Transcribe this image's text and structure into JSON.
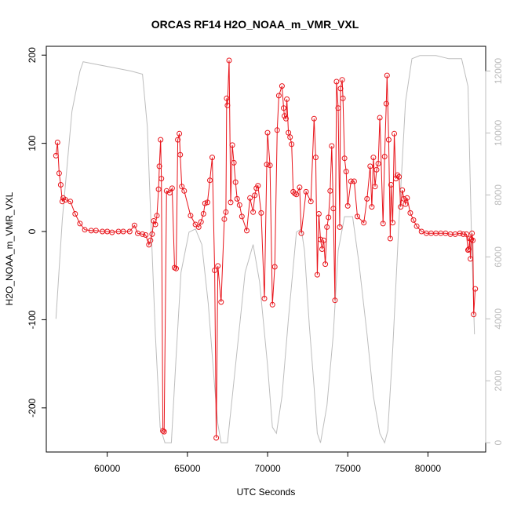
{
  "chart_data": {
    "type": "line",
    "title": "ORCAS RF14 H2O_NOAA_m_VMR_VXL",
    "xlabel": "UTC Seconds",
    "ylabel": "H2O_NOAA_m_VMR_VXL",
    "xlim": [
      56200,
      83600
    ],
    "ylim": [
      -250,
      210
    ],
    "y2lim": [
      -300,
      12800
    ],
    "x_ticks": [
      60000,
      65000,
      70000,
      75000,
      80000
    ],
    "y_ticks": [
      -200,
      -100,
      0,
      100,
      200
    ],
    "y2_ticks": [
      0,
      2000,
      4000,
      6000,
      8000,
      10000,
      12000
    ],
    "grid": false,
    "colors": {
      "primary": "#e8141b",
      "secondary": "#bdbdbd",
      "axis": "#000000"
    },
    "series": [
      {
        "axis": "left",
        "style": "line+points",
        "points": [
          [
            56800,
            86
          ],
          [
            56900,
            101
          ],
          [
            57000,
            66
          ],
          [
            57100,
            53
          ],
          [
            57200,
            34
          ],
          [
            57250,
            38
          ],
          [
            57400,
            36
          ],
          [
            57700,
            34
          ],
          [
            58000,
            20
          ],
          [
            58300,
            9
          ],
          [
            58600,
            2
          ],
          [
            59000,
            1
          ],
          [
            59300,
            1
          ],
          [
            59700,
            0
          ],
          [
            60000,
            0
          ],
          [
            60300,
            -1
          ],
          [
            60700,
            0
          ],
          [
            61000,
            0
          ],
          [
            61400,
            0
          ],
          [
            61700,
            7
          ],
          [
            61900,
            -2
          ],
          [
            62200,
            -3
          ],
          [
            62400,
            -4
          ],
          [
            62600,
            -15
          ],
          [
            62700,
            -10
          ],
          [
            62800,
            -3
          ],
          [
            62900,
            12
          ],
          [
            63000,
            8
          ],
          [
            63100,
            18
          ],
          [
            63200,
            48
          ],
          [
            63250,
            74
          ],
          [
            63330,
            104
          ],
          [
            63380,
            60
          ],
          [
            63470,
            -226
          ],
          [
            63550,
            -227
          ],
          [
            63700,
            46
          ],
          [
            63900,
            44
          ],
          [
            64050,
            49
          ],
          [
            64200,
            -41
          ],
          [
            64300,
            -42
          ],
          [
            64400,
            104
          ],
          [
            64500,
            111
          ],
          [
            64550,
            87
          ],
          [
            64650,
            51
          ],
          [
            64800,
            46
          ],
          [
            65200,
            18
          ],
          [
            65500,
            8
          ],
          [
            65700,
            5
          ],
          [
            65850,
            11
          ],
          [
            66000,
            20
          ],
          [
            66100,
            32
          ],
          [
            66250,
            33
          ],
          [
            66400,
            58
          ],
          [
            66550,
            84
          ],
          [
            66700,
            -44
          ],
          [
            66800,
            -234
          ],
          [
            66900,
            -39
          ],
          [
            67100,
            -80
          ],
          [
            67300,
            14
          ],
          [
            67400,
            22
          ],
          [
            67450,
            151
          ],
          [
            67500,
            143
          ],
          [
            67600,
            194
          ],
          [
            67700,
            33
          ],
          [
            67800,
            98
          ],
          [
            67900,
            78
          ],
          [
            68000,
            56
          ],
          [
            68100,
            37
          ],
          [
            68250,
            30
          ],
          [
            68400,
            17
          ],
          [
            68700,
            1
          ],
          [
            68900,
            38
          ],
          [
            69100,
            22
          ],
          [
            69200,
            41
          ],
          [
            69300,
            49
          ],
          [
            69400,
            52
          ],
          [
            69600,
            21
          ],
          [
            69800,
            -76
          ],
          [
            69950,
            76
          ],
          [
            70000,
            112
          ],
          [
            70150,
            75
          ],
          [
            70300,
            -83
          ],
          [
            70450,
            -40
          ],
          [
            70600,
            115
          ],
          [
            70700,
            154
          ],
          [
            70900,
            165
          ],
          [
            71000,
            140
          ],
          [
            71050,
            131
          ],
          [
            71150,
            128
          ],
          [
            71200,
            150
          ],
          [
            71300,
            112
          ],
          [
            71400,
            107
          ],
          [
            71500,
            99
          ],
          [
            71600,
            45
          ],
          [
            71700,
            43
          ],
          [
            71800,
            42
          ],
          [
            72000,
            50
          ],
          [
            72100,
            -2
          ],
          [
            72400,
            45
          ],
          [
            72700,
            34
          ],
          [
            72900,
            128
          ],
          [
            73000,
            84
          ],
          [
            73100,
            -49
          ],
          [
            73200,
            20
          ],
          [
            73300,
            -9
          ],
          [
            73400,
            -20
          ],
          [
            73500,
            -10
          ],
          [
            73600,
            -37
          ],
          [
            73700,
            5
          ],
          [
            73800,
            16
          ],
          [
            73900,
            46
          ],
          [
            74000,
            97
          ],
          [
            74100,
            26
          ],
          [
            74200,
            -78
          ],
          [
            74300,
            170
          ],
          [
            74400,
            140
          ],
          [
            74500,
            5
          ],
          [
            74550,
            162
          ],
          [
            74650,
            172
          ],
          [
            74700,
            151
          ],
          [
            74800,
            83
          ],
          [
            74900,
            68
          ],
          [
            75000,
            29
          ],
          [
            75200,
            57
          ],
          [
            75400,
            57
          ],
          [
            75600,
            17
          ],
          [
            76000,
            10
          ],
          [
            76200,
            37
          ],
          [
            76400,
            74
          ],
          [
            76500,
            28
          ],
          [
            76600,
            84
          ],
          [
            76700,
            51
          ],
          [
            76800,
            70
          ],
          [
            76900,
            77
          ],
          [
            77000,
            129
          ],
          [
            77200,
            9
          ],
          [
            77300,
            85
          ],
          [
            77400,
            145
          ],
          [
            77450,
            177
          ],
          [
            77550,
            104
          ],
          [
            77650,
            -8
          ],
          [
            77700,
            53
          ],
          [
            77800,
            10
          ],
          [
            77900,
            111
          ],
          [
            78000,
            60
          ],
          [
            78100,
            64
          ],
          [
            78200,
            62
          ],
          [
            78300,
            28
          ],
          [
            78400,
            47
          ],
          [
            78500,
            37
          ],
          [
            78600,
            31
          ],
          [
            78700,
            38
          ],
          [
            78900,
            21
          ],
          [
            79100,
            13
          ],
          [
            79300,
            6
          ],
          [
            79600,
            0
          ],
          [
            79900,
            -2
          ],
          [
            80200,
            -2
          ],
          [
            80500,
            -2
          ],
          [
            80800,
            -2
          ],
          [
            81100,
            -2
          ],
          [
            81400,
            -3
          ],
          [
            81700,
            -3
          ],
          [
            82000,
            -2
          ],
          [
            82200,
            -3
          ],
          [
            82400,
            -3
          ],
          [
            82500,
            -21
          ],
          [
            82550,
            -20
          ],
          [
            82600,
            -8
          ],
          [
            82650,
            -31
          ],
          [
            82700,
            -9
          ],
          [
            82750,
            -2
          ],
          [
            82800,
            -10
          ],
          [
            82850,
            -94
          ],
          [
            82950,
            -65
          ]
        ]
      },
      {
        "axis": "right",
        "style": "line",
        "points": [
          [
            56800,
            4000
          ],
          [
            57200,
            7200
          ],
          [
            57800,
            10700
          ],
          [
            58300,
            12000
          ],
          [
            58500,
            12300
          ],
          [
            59500,
            12200
          ],
          [
            60500,
            12100
          ],
          [
            61500,
            12000
          ],
          [
            62200,
            11900
          ],
          [
            62500,
            10200
          ],
          [
            62700,
            7500
          ],
          [
            63000,
            3500
          ],
          [
            63300,
            500
          ],
          [
            63600,
            0
          ],
          [
            64000,
            0
          ],
          [
            64300,
            2800
          ],
          [
            64600,
            5500
          ],
          [
            65100,
            6800
          ],
          [
            65500,
            6900
          ],
          [
            65900,
            6400
          ],
          [
            66300,
            4500
          ],
          [
            66700,
            1800
          ],
          [
            66900,
            600
          ],
          [
            67100,
            0
          ],
          [
            67500,
            0
          ],
          [
            67800,
            1500
          ],
          [
            68200,
            3500
          ],
          [
            68600,
            5500
          ],
          [
            69100,
            6400
          ],
          [
            69500,
            5200
          ],
          [
            70000,
            2500
          ],
          [
            70300,
            500
          ],
          [
            70550,
            300
          ],
          [
            70900,
            1500
          ],
          [
            71300,
            4000
          ],
          [
            71800,
            6800
          ],
          [
            72100,
            6900
          ],
          [
            72300,
            6200
          ],
          [
            72600,
            3800
          ],
          [
            72900,
            1800
          ],
          [
            73100,
            300
          ],
          [
            73300,
            0
          ],
          [
            73700,
            1200
          ],
          [
            74100,
            3500
          ],
          [
            74400,
            6200
          ],
          [
            74800,
            7300
          ],
          [
            75300,
            7300
          ],
          [
            75700,
            5800
          ],
          [
            76200,
            3500
          ],
          [
            76600,
            1500
          ],
          [
            77000,
            300
          ],
          [
            77300,
            0
          ],
          [
            77500,
            400
          ],
          [
            77800,
            3000
          ],
          [
            78200,
            7200
          ],
          [
            78600,
            11000
          ],
          [
            79000,
            12400
          ],
          [
            79500,
            12500
          ],
          [
            80500,
            12500
          ],
          [
            81300,
            12400
          ],
          [
            82100,
            12400
          ],
          [
            82500,
            11500
          ],
          [
            82700,
            7000
          ],
          [
            82900,
            3500
          ]
        ]
      }
    ]
  }
}
